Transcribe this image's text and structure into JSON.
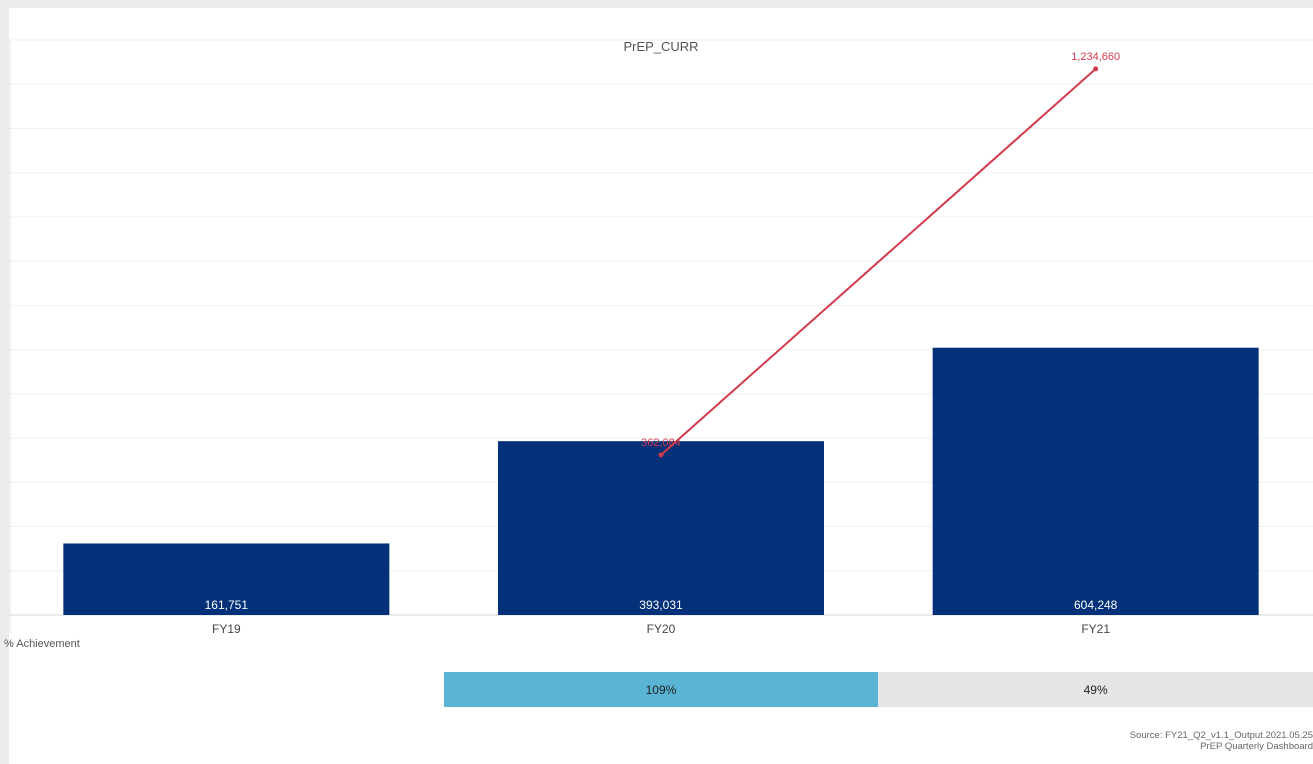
{
  "chart_data": {
    "type": "bar",
    "title": "PrEP_CURR",
    "categories": [
      "FY19",
      "FY20",
      "FY21"
    ],
    "series": [
      {
        "type": "bar",
        "values": [
          161751,
          393031,
          604248
        ],
        "labels": [
          "161,751",
          "393,031",
          "604,248"
        ],
        "color": "#023179"
      },
      {
        "type": "line",
        "values": [
          null,
          362084,
          1234660
        ],
        "labels": [
          null,
          "362,084",
          "1,234,660"
        ],
        "color": "#d23a4c"
      }
    ],
    "ylim": [
      0,
      1300000
    ],
    "grid": true
  },
  "achievement": {
    "label": "% Achievement",
    "segments": [
      {
        "category": "FY20",
        "value": "109%",
        "color": "#5ab4d4"
      },
      {
        "category": "FY21",
        "value": "49%",
        "color": "#e6e6e6"
      }
    ]
  },
  "footer": {
    "source": "Source: FY21_Q2_v1.1_Output.2021.05.25",
    "dashboard": "PrEP Quarterly Dashboard"
  }
}
